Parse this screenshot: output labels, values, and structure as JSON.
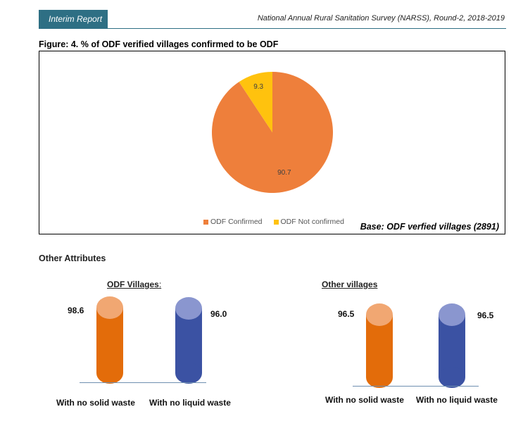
{
  "header": {
    "tab_label": "Interim Report",
    "right_title": "National Annual Rural Sanitation Survey (NARSS), Round-2, 2018-2019"
  },
  "figure": {
    "title": "Figure: 4. % of ODF verified villages confirmed to be ODF",
    "base_note": "Base: ODF verfied villages (2891)"
  },
  "chart_data": {
    "type": "pie",
    "title": "",
    "slices": [
      {
        "label": "ODF Confirmed",
        "value": 90.7,
        "color": "#ee7f3b",
        "value_label": "90.7"
      },
      {
        "label": "ODF Not confirmed",
        "value": 9.3,
        "color": "#ffc20e",
        "value_label": "9.3"
      }
    ],
    "legend": "bottom"
  },
  "other_attributes": {
    "section_title": "Other Attributes",
    "groups": [
      {
        "title": "ODF Villages",
        "title_suffix": ":",
        "bars": [
          {
            "label": "With no solid waste",
            "value_label": "98.6",
            "value": 98.6,
            "color": "#e36c0a"
          },
          {
            "label": "With no liquid waste",
            "value_label": "96.0",
            "value": 96.0,
            "color": "#3b52a3"
          }
        ]
      },
      {
        "title": "Other villages",
        "title_suffix": "",
        "bars": [
          {
            "label": "With no solid waste",
            "value_label": "96.5",
            "value": 96.5,
            "color": "#e36c0a"
          },
          {
            "label": "With no liquid waste",
            "value_label": "96.5",
            "value": 96.5,
            "color": "#3b52a3"
          }
        ]
      }
    ]
  }
}
